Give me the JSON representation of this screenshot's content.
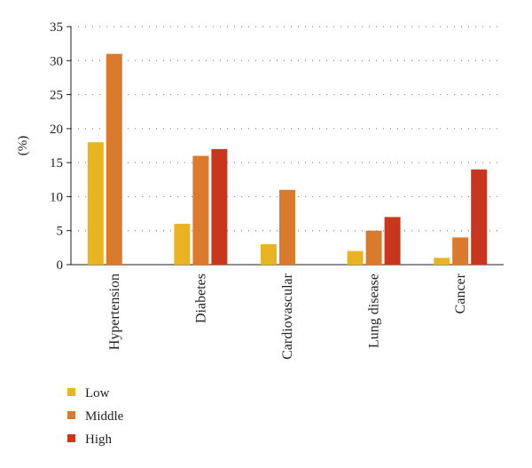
{
  "chart_data": {
    "type": "bar",
    "categories": [
      "Hypertension",
      "Diabetes",
      "Cardiovascular",
      "Lung disease",
      "Cancer"
    ],
    "series": [
      {
        "name": "Low",
        "color": "#e8b422",
        "values": [
          18,
          6,
          3,
          2,
          1
        ]
      },
      {
        "name": "Middle",
        "color": "#d97a2c",
        "values": [
          31,
          16,
          11,
          5,
          4
        ]
      },
      {
        "name": "High",
        "color": "#c9361e",
        "values": [
          0,
          17,
          0,
          7,
          14
        ]
      }
    ],
    "title": "",
    "xlabel": "",
    "ylabel": "(%)",
    "ylim": [
      0,
      35
    ],
    "yticks": [
      0,
      5,
      10,
      15,
      20,
      25,
      30,
      35
    ],
    "grid": "dotted horizontal",
    "legend_position": "bottom-left"
  }
}
